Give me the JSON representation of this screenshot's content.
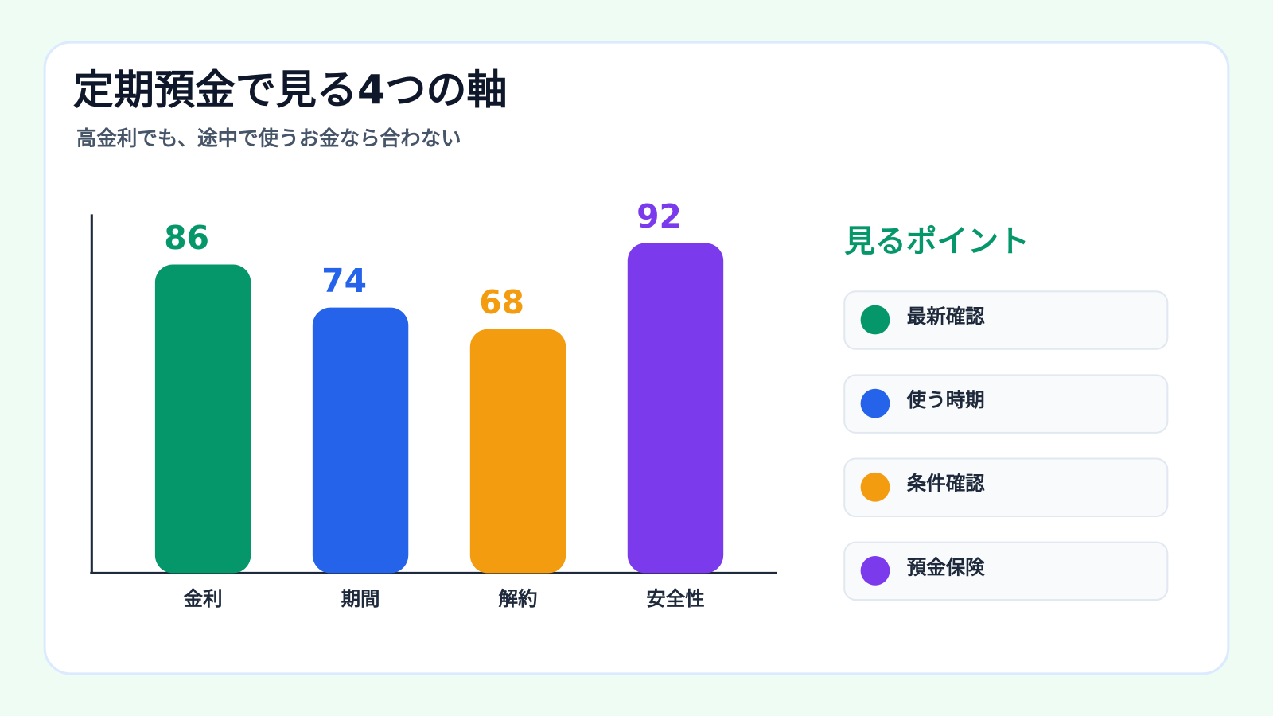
{
  "chart_data": {
    "type": "bar",
    "title": "定期預金で見る4つの軸",
    "subtitle": "高金利でも、途中で使うお金なら合わない",
    "categories": [
      "金利",
      "期間",
      "解約",
      "安全性"
    ],
    "values": [
      86,
      74,
      68,
      92
    ],
    "colors": [
      "#059669",
      "#2563eb",
      "#f39c0f",
      "#7c3aed"
    ],
    "ylim": [
      0,
      100
    ],
    "legend_title": "見るポイント",
    "points": [
      "最新確認",
      "使う時期",
      "条件確認",
      "預金保険"
    ]
  }
}
